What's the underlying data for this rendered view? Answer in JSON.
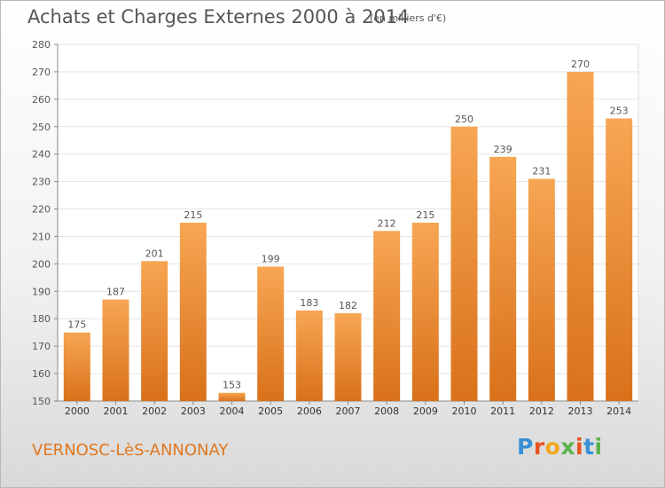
{
  "chart_data": {
    "type": "bar",
    "title": "Achats et Charges Externes 2000 à 2014",
    "subtitle": "(en milliers d'€)",
    "categories": [
      "2000",
      "2001",
      "2002",
      "2003",
      "2004",
      "2005",
      "2006",
      "2007",
      "2008",
      "2009",
      "2010",
      "2011",
      "2012",
      "2013",
      "2014"
    ],
    "values": [
      175,
      187,
      201,
      215,
      153,
      199,
      183,
      182,
      212,
      215,
      250,
      239,
      231,
      270,
      253
    ],
    "ylim": [
      150,
      280
    ],
    "yticks": [
      150,
      160,
      170,
      180,
      190,
      200,
      210,
      220,
      230,
      240,
      250,
      260,
      270,
      280
    ],
    "grid": true,
    "bar_color": "#f08a24",
    "label_color": "#555555"
  },
  "footer": {
    "location": "VERNOSC-LèS-ANNONAY",
    "location_color": "#e07820"
  },
  "logo": {
    "text": "Proxiti",
    "colors": [
      "#3a8fd6",
      "#e8531f",
      "#f2a51c",
      "#59b34a",
      "#e8531f",
      "#3a8fd6",
      "#59b34a"
    ]
  }
}
